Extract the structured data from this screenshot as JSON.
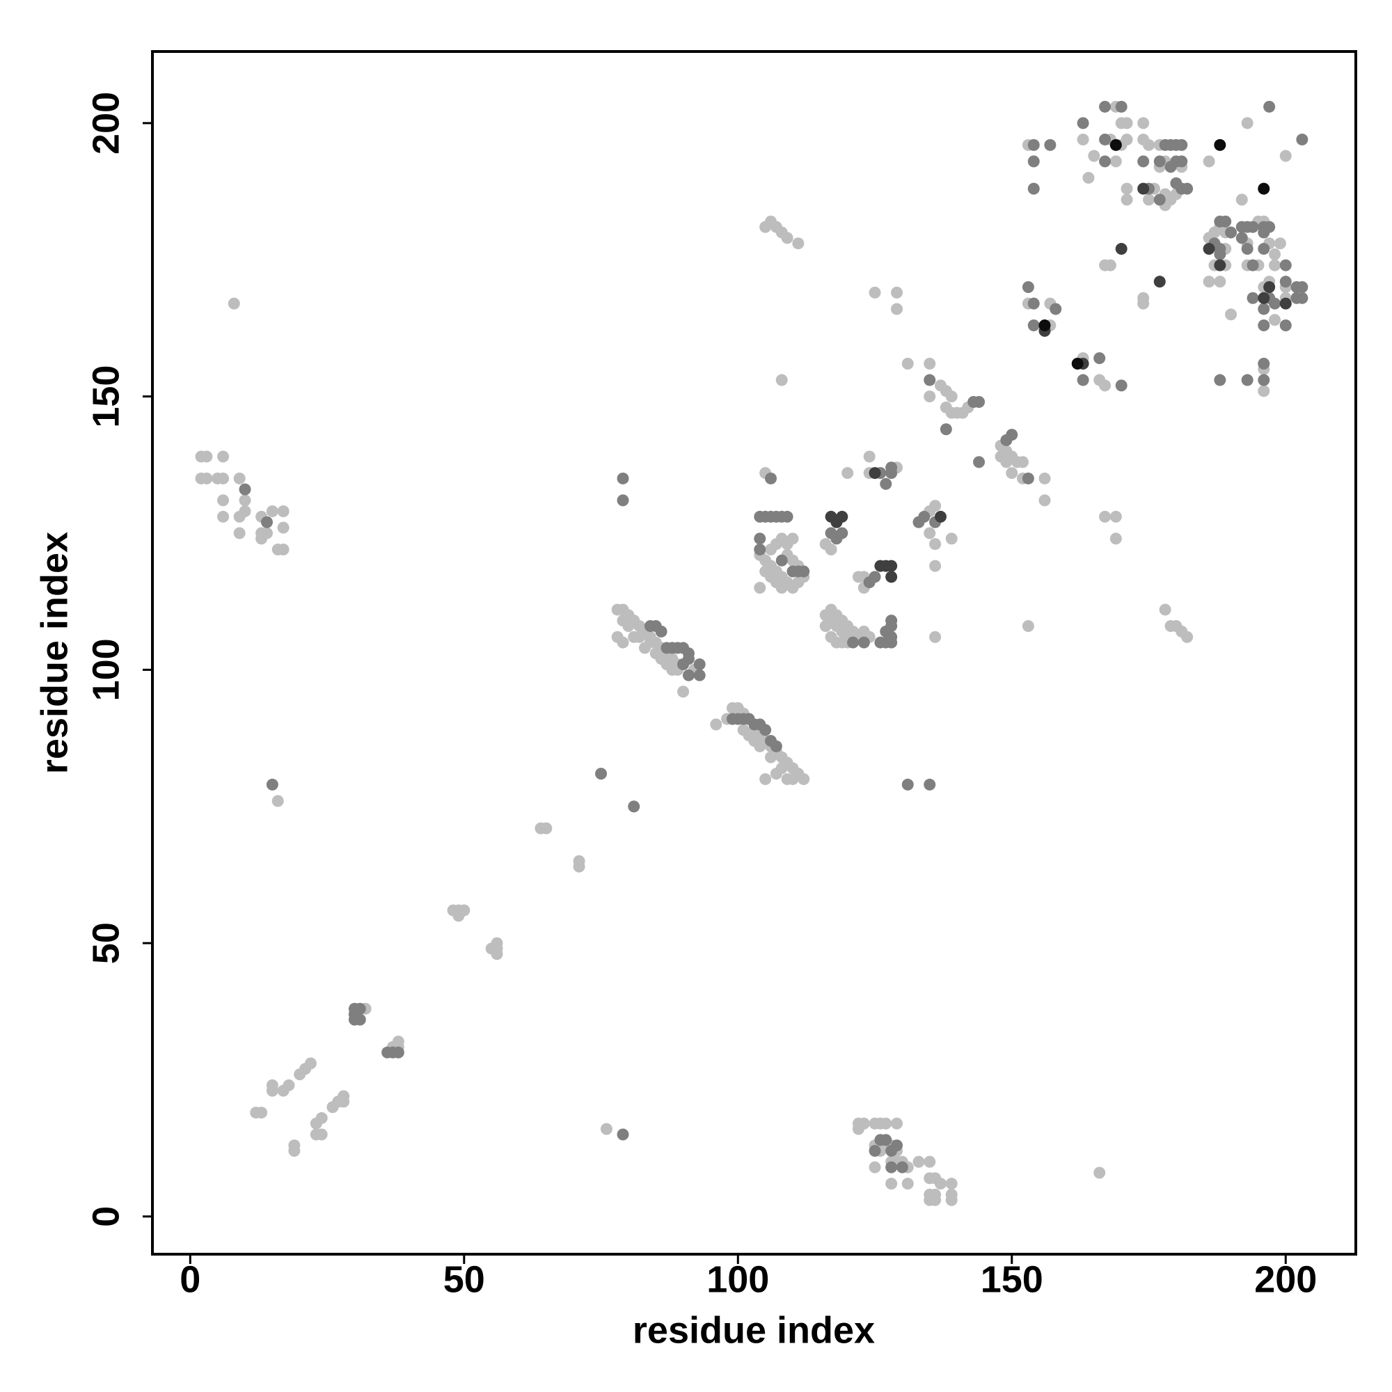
{
  "chart_data": {
    "type": "scatter",
    "xlabel": "residue index",
    "ylabel": "residue index",
    "xlim": [
      -6.9,
      212.8
    ],
    "ylim": [
      -6.9,
      213.1
    ],
    "xticks": [
      0,
      50,
      100,
      150,
      200
    ],
    "yticks": [
      0,
      50,
      100,
      150,
      200
    ],
    "series": [
      {
        "color": "#bdbdbd",
        "x": [
          2,
          3,
          6,
          2,
          3,
          5,
          6,
          9,
          6,
          10,
          6,
          9,
          10,
          13,
          15,
          17,
          9,
          13,
          17,
          16,
          17,
          14,
          13,
          8,
          16,
          12,
          13,
          15,
          15,
          17,
          18,
          20,
          21,
          22,
          19,
          19,
          23,
          24,
          23,
          24,
          26,
          27,
          28,
          28,
          32,
          38,
          38,
          37,
          48,
          49,
          50,
          49,
          55,
          56,
          56,
          56,
          64,
          65,
          71,
          71,
          76,
          78,
          79,
          80,
          81,
          82,
          83,
          84,
          85,
          86,
          87,
          88,
          89,
          78,
          79,
          81,
          83,
          85,
          87,
          89,
          90,
          79,
          80,
          82,
          84,
          86,
          88,
          92,
          96,
          98,
          99,
          100,
          101,
          102,
          103,
          104,
          105,
          106,
          107,
          108,
          109,
          110,
          111,
          112,
          102,
          104,
          106,
          108,
          110,
          105,
          107,
          109,
          103,
          101,
          105,
          106,
          107,
          108,
          109,
          111,
          108,
          104,
          105,
          106,
          107,
          108,
          109,
          110,
          111,
          112,
          105,
          106,
          107,
          108,
          109,
          110,
          111,
          108,
          109,
          110,
          106,
          107,
          105,
          104,
          116,
          117,
          118,
          119,
          120,
          121,
          122,
          117,
          118,
          119,
          120,
          121,
          123,
          124,
          116,
          117,
          118,
          119,
          120,
          116,
          117,
          120,
          122,
          123,
          123,
          124,
          124,
          129,
          125,
          129,
          129,
          131,
          135,
          135,
          137,
          138,
          139,
          138,
          139,
          140,
          141,
          142,
          135,
          136,
          135,
          136,
          139,
          136,
          136,
          148,
          149,
          150,
          151,
          148,
          149,
          150,
          152,
          152,
          156,
          156,
          153,
          153,
          153,
          157,
          157,
          163,
          166,
          167,
          163,
          168,
          169,
          170,
          171,
          171,
          170,
          165,
          164,
          169,
          171,
          171,
          174,
          174,
          175,
          175,
          177,
          178,
          177,
          181,
          176,
          178,
          179,
          180,
          178,
          167,
          168,
          174,
          174,
          186,
          193,
          200,
          192,
          186,
          187,
          188,
          189,
          186,
          187,
          189,
          189,
          186,
          188,
          190,
          193,
          193,
          195,
          196,
          197,
          197,
          198,
          198,
          200,
          200,
          198,
          195,
          196,
          199,
          196,
          196,
          166,
          178,
          179,
          180,
          181,
          182,
          167,
          169,
          169,
          122,
          123,
          125,
          126,
          127,
          129,
          125,
          126,
          128,
          129,
          125,
          128,
          129,
          130,
          128,
          131,
          133,
          135,
          135,
          136,
          135,
          136,
          137,
          139,
          139,
          139,
          135,
          136,
          122,
          126,
          131
        ],
        "y": [
          139,
          139,
          139,
          135,
          135,
          135,
          135,
          135,
          131,
          131,
          128,
          128,
          129,
          128,
          129,
          129,
          125,
          125,
          126,
          122,
          122,
          125,
          124,
          167,
          76,
          19,
          19,
          23,
          24,
          23,
          24,
          26,
          27,
          28,
          12,
          13,
          15,
          15,
          17,
          18,
          20,
          21,
          22,
          21,
          38,
          31,
          32,
          31,
          56,
          56,
          56,
          55,
          49,
          49,
          48,
          50,
          71,
          71,
          64,
          65,
          16,
          111,
          111,
          110,
          109,
          108,
          107,
          106,
          105,
          104,
          103,
          102,
          101,
          106,
          105,
          106,
          104,
          103,
          101,
          100,
          96,
          109,
          108,
          106,
          105,
          102,
          100,
          100,
          90,
          91,
          93,
          93,
          92,
          91,
          89,
          88,
          87,
          86,
          85,
          84,
          83,
          82,
          81,
          80,
          88,
          86,
          84,
          82,
          80,
          80,
          81,
          80,
          87,
          89,
          181,
          182,
          181,
          180,
          179,
          178,
          153,
          121,
          120,
          119,
          118,
          117,
          116,
          115,
          116,
          117,
          118,
          117,
          116,
          115,
          121,
          120,
          119,
          124,
          123,
          124,
          122,
          123,
          136,
          115,
          110,
          109,
          108,
          107,
          106,
          106,
          106,
          111,
          110,
          109,
          108,
          107,
          107,
          106,
          108,
          106,
          105,
          105,
          105,
          123,
          122,
          136,
          117,
          117,
          115,
          139,
          136,
          137,
          169,
          169,
          166,
          156,
          156,
          150,
          152,
          151,
          150,
          148,
          147,
          147,
          147,
          148,
          129,
          130,
          125,
          123,
          124,
          119,
          106,
          141,
          140,
          139,
          138,
          139,
          138,
          136,
          135,
          138,
          135,
          131,
          108,
          196,
          167,
          167,
          163,
          157,
          153,
          152,
          197,
          197,
          203,
          200,
          200,
          197,
          196,
          194,
          190,
          193,
          188,
          186,
          200,
          197,
          196,
          186,
          196,
          193,
          192,
          192,
          188,
          187,
          186,
          187,
          185,
          174,
          174,
          168,
          167,
          193,
          200,
          194,
          186,
          179,
          180,
          181,
          180,
          177,
          174,
          177,
          174,
          171,
          171,
          165,
          178,
          174,
          174,
          170,
          171,
          178,
          176,
          174,
          170,
          168,
          164,
          182,
          182,
          178,
          155,
          151,
          8,
          111,
          108,
          108,
          107,
          106,
          128,
          128,
          124,
          17,
          17,
          17,
          17,
          17,
          17,
          13,
          13,
          13,
          12,
          9,
          10,
          10,
          10,
          6,
          6,
          10,
          10,
          7,
          7,
          4,
          4,
          6,
          6,
          3,
          4,
          3,
          3,
          16,
          12,
          9
        ]
      },
      {
        "color": "#7f7f7f",
        "x": [
          10,
          14,
          15,
          30,
          31,
          30,
          31,
          30,
          36,
          37,
          38,
          79,
          75,
          81,
          79,
          79,
          84,
          85,
          86,
          87,
          88,
          89,
          90,
          91,
          91,
          90,
          91,
          93,
          93,
          99,
          100,
          101,
          102,
          103,
          104,
          105,
          106,
          107,
          104,
          105,
          106,
          107,
          108,
          109,
          104,
          104,
          106,
          110,
          111,
          112,
          108,
          121,
          123,
          126,
          127,
          128,
          128,
          128,
          128,
          127,
          117,
          118,
          119,
          125,
          124,
          126,
          127,
          128,
          128,
          131,
          135,
          135,
          143,
          144,
          138,
          144,
          133,
          134,
          136,
          153,
          149,
          150,
          154,
          157,
          154,
          154,
          153,
          154,
          154,
          158,
          163,
          166,
          170,
          163,
          167,
          167,
          170,
          167,
          174,
          175,
          178,
          179,
          180,
          181,
          177,
          180,
          181,
          179,
          177,
          180,
          181,
          182,
          197,
          203,
          187,
          188,
          188,
          189,
          188,
          190,
          192,
          193,
          194,
          192,
          193,
          196,
          196,
          197,
          196,
          194,
          200,
          200,
          202,
          203,
          202,
          203,
          194,
          197,
          196,
          198,
          196,
          200,
          188,
          193,
          196,
          196,
          125,
          126,
          127,
          128,
          129,
          130,
          128
        ],
        "y": [
          133,
          127,
          79,
          37,
          36,
          36,
          38,
          38,
          30,
          30,
          30,
          15,
          81,
          75,
          135,
          131,
          108,
          108,
          107,
          104,
          104,
          104,
          104,
          103,
          102,
          101,
          99,
          101,
          99,
          91,
          91,
          91,
          91,
          90,
          90,
          89,
          87,
          86,
          128,
          128,
          128,
          128,
          128,
          128,
          124,
          122,
          135,
          118,
          118,
          118,
          120,
          105,
          105,
          105,
          105,
          106,
          105,
          108,
          109,
          107,
          125,
          124,
          125,
          117,
          116,
          136,
          134,
          137,
          136,
          79,
          79,
          153,
          149,
          149,
          144,
          138,
          127,
          128,
          127,
          135,
          142,
          143,
          196,
          196,
          193,
          188,
          170,
          167,
          163,
          166,
          153,
          157,
          152,
          200,
          203,
          197,
          203,
          193,
          193,
          188,
          196,
          196,
          196,
          196,
          193,
          193,
          193,
          192,
          186,
          189,
          188,
          188,
          203,
          197,
          178,
          177,
          176,
          182,
          182,
          180,
          181,
          181,
          181,
          179,
          177,
          181,
          180,
          181,
          177,
          174,
          174,
          171,
          170,
          170,
          168,
          168,
          168,
          168,
          166,
          167,
          163,
          163,
          153,
          153,
          153,
          156,
          12,
          14,
          14,
          12,
          13,
          9,
          9
        ]
      },
      {
        "color": "#3f3f3f",
        "x": [
          117,
          118,
          119,
          127,
          128,
          128,
          126,
          125,
          137,
          156,
          163,
          170,
          174,
          177,
          186,
          188,
          196,
          197,
          200
        ],
        "y": [
          128,
          127,
          128,
          119,
          119,
          117,
          119,
          136,
          128,
          162,
          156,
          177,
          188,
          171,
          177,
          174,
          168,
          170,
          167
        ]
      },
      {
        "color": "#0d0d0d",
        "x": [
          156,
          162,
          169,
          188,
          196
        ],
        "y": [
          163,
          156,
          196,
          196,
          188
        ]
      }
    ]
  }
}
